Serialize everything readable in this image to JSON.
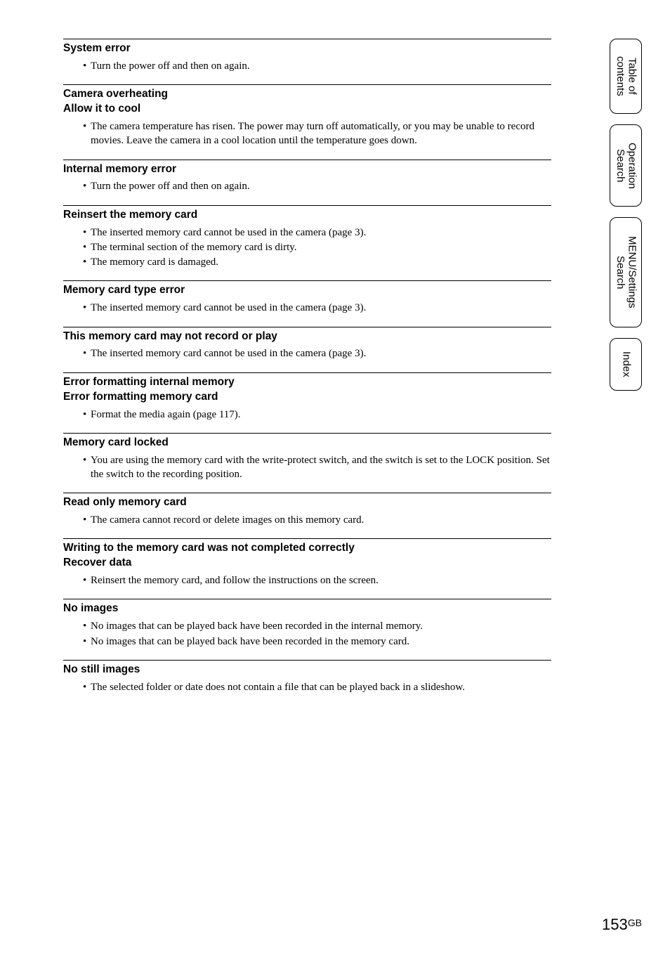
{
  "sections": [
    {
      "heading": [
        "System error"
      ],
      "bullets": [
        "Turn the power off and then on again."
      ]
    },
    {
      "heading": [
        "Camera overheating",
        "Allow it to cool"
      ],
      "bullets": [
        "The camera temperature has risen. The power may turn off automatically, or you may be unable to record movies. Leave the camera in a cool location until the temperature goes down."
      ]
    },
    {
      "heading": [
        "Internal memory error"
      ],
      "bullets": [
        "Turn the power off and then on again."
      ]
    },
    {
      "heading": [
        "Reinsert the memory card"
      ],
      "bullets": [
        "The inserted memory card cannot be used in the camera (page 3).",
        "The terminal section of the memory card is dirty.",
        "The memory card is damaged."
      ]
    },
    {
      "heading": [
        "Memory card type error"
      ],
      "bullets": [
        "The inserted memory card cannot be used in the camera (page 3)."
      ]
    },
    {
      "heading": [
        "This memory card may not record or play"
      ],
      "bullets": [
        "The inserted memory card cannot be used in the camera (page 3)."
      ]
    },
    {
      "heading": [
        "Error formatting internal memory",
        "Error formatting memory card"
      ],
      "bullets": [
        "Format the media again (page 117)."
      ]
    },
    {
      "heading": [
        "Memory card locked"
      ],
      "bullets": [
        "You are using the memory card with the write-protect switch, and the switch is set to the LOCK position. Set the switch to the recording position."
      ]
    },
    {
      "heading": [
        "Read only memory card"
      ],
      "bullets": [
        "The camera cannot record or delete images on this memory card."
      ]
    },
    {
      "heading": [
        "Writing to the memory card was not completed correctly",
        "Recover data"
      ],
      "bullets": [
        "Reinsert the memory card, and follow the instructions on the screen."
      ]
    },
    {
      "heading": [
        "No images"
      ],
      "bullets": [
        "No images that can be played back have been recorded in the internal memory.",
        "No images that can be played back have been recorded in the memory card."
      ]
    },
    {
      "heading": [
        "No still images"
      ],
      "bullets": [
        "The selected folder or date does not contain a file that can be played back in a slideshow."
      ]
    }
  ],
  "tabs": {
    "toc_line1": "Table of",
    "toc_line2": "contents",
    "op_line1": "Operation",
    "op_line2": "Search",
    "menu_line1": "MENU/Settings",
    "menu_line2": "Search",
    "index": "Index"
  },
  "tab_heights": {
    "toc": 107,
    "op": 117,
    "menu": 157,
    "index": 75
  },
  "page": {
    "number": "153",
    "suffix": "GB"
  },
  "colors": {
    "text": "#000000",
    "background": "#ffffff",
    "divider": "#000000",
    "tab_border": "#000000"
  }
}
